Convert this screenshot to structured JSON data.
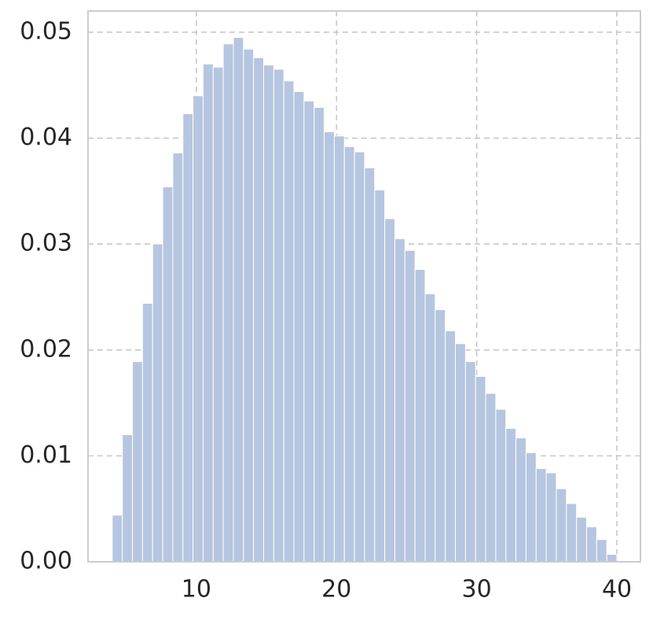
{
  "chart_data": {
    "type": "histogram",
    "bins": [
      4,
      4.72,
      5.44,
      6.16,
      6.88,
      7.6,
      8.32,
      9.04,
      9.76,
      10.48,
      11.2,
      11.92,
      12.64,
      13.36,
      14.08,
      14.8,
      15.52,
      16.24,
      16.96,
      17.68,
      18.4,
      19.12,
      19.84,
      20.56,
      21.28,
      22,
      22.72,
      23.44,
      24.16,
      24.88,
      25.6,
      26.32,
      27.04,
      27.76,
      28.48,
      29.2,
      29.92,
      30.64,
      31.36,
      32.08,
      32.8,
      33.52,
      34.24,
      34.96,
      35.68,
      36.4,
      37.12,
      37.84,
      38.56,
      39.28,
      40
    ],
    "values": [
      0.0044,
      0.012,
      0.0189,
      0.0244,
      0.03,
      0.0354,
      0.0386,
      0.0423,
      0.044,
      0.047,
      0.0467,
      0.0489,
      0.0495,
      0.0484,
      0.0476,
      0.0469,
      0.0465,
      0.0454,
      0.0444,
      0.0435,
      0.0429,
      0.0406,
      0.0402,
      0.0392,
      0.0387,
      0.0372,
      0.0351,
      0.0324,
      0.0305,
      0.0294,
      0.0276,
      0.0253,
      0.0238,
      0.0218,
      0.0206,
      0.0189,
      0.0175,
      0.0159,
      0.0144,
      0.0126,
      0.0117,
      0.0103,
      0.0088,
      0.0084,
      0.0069,
      0.0055,
      0.0042,
      0.0033,
      0.0021,
      0.0007
    ],
    "color": "#b6c6e0",
    "xlim": [
      2.27,
      41.68
    ],
    "xticks": [
      10,
      20,
      30,
      40
    ],
    "ylim": [
      0,
      0.052
    ],
    "yticks": [
      {
        "value": 0,
        "label": "0.00"
      },
      0.01,
      0.02,
      0.03,
      0.04,
      0.05
    ],
    "grid": true
  }
}
